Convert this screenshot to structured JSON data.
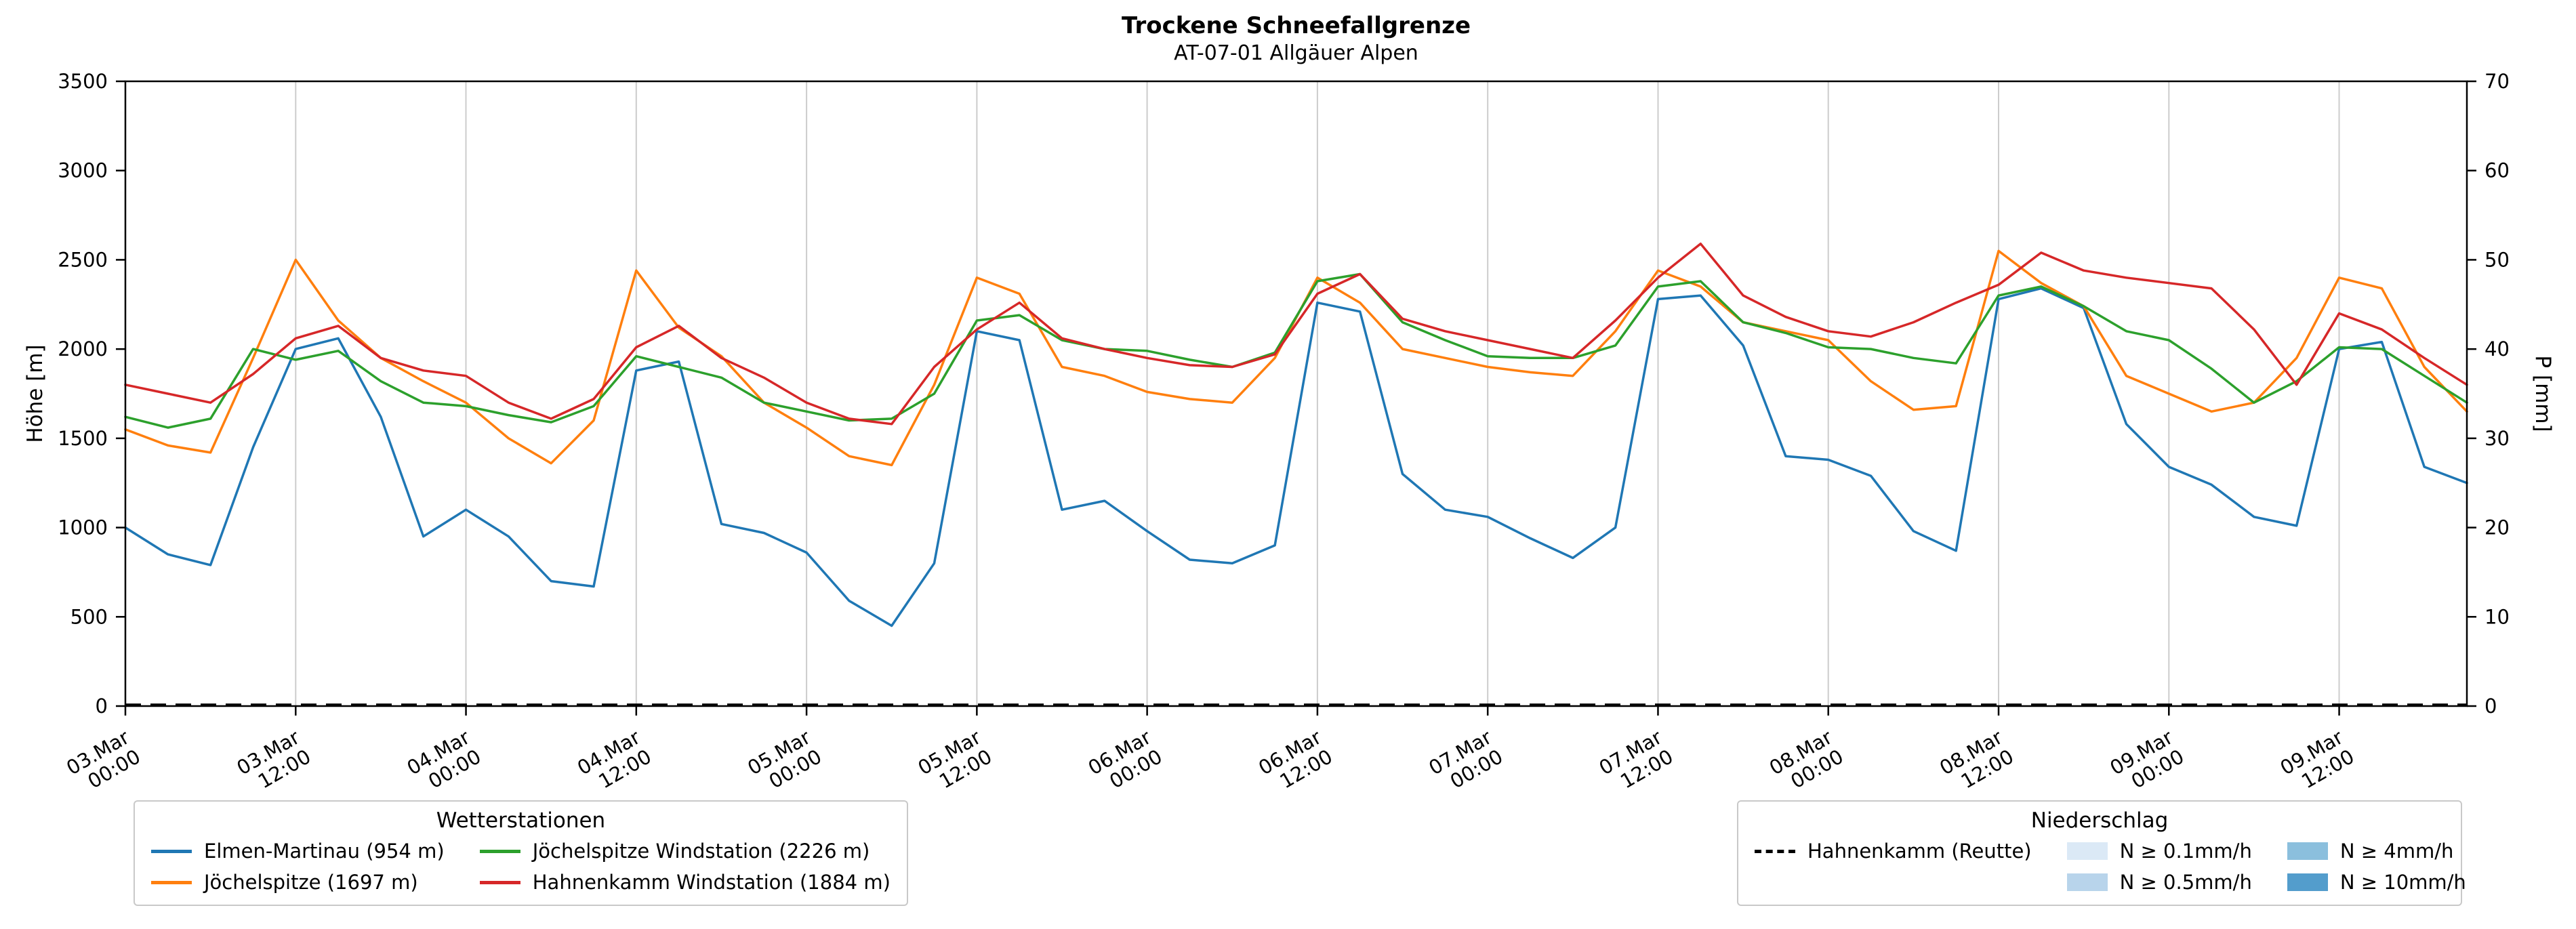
{
  "title": "Trockene Schneefallgrenze",
  "subtitle": "AT-07-01 Allgäuer Alpen",
  "chart_data": {
    "type": "line",
    "title": "Trockene Schneefallgrenze",
    "subtitle": "AT-07-01 Allgäuer Alpen",
    "ylabel_left": "Höhe [m]",
    "ylabel_right": "P [mm]",
    "ylim_left": [
      0,
      3500
    ],
    "yticks_left": [
      0,
      500,
      1000,
      1500,
      2000,
      2500,
      3000,
      3500
    ],
    "ylim_right": [
      0,
      70
    ],
    "yticks_right": [
      0,
      10,
      20,
      30,
      40,
      50,
      60,
      70
    ],
    "xlim_hours": [
      0,
      165
    ],
    "x_start": 0,
    "x_step_hours": 3,
    "grid": {
      "x": true,
      "y": false,
      "color": "#cccccc"
    },
    "x_ticks": [
      {
        "h": 0,
        "line1": "03.Mar",
        "line2": "00:00"
      },
      {
        "h": 12,
        "line1": "03.Mar",
        "line2": "12:00"
      },
      {
        "h": 24,
        "line1": "04.Mar",
        "line2": "00:00"
      },
      {
        "h": 36,
        "line1": "04.Mar",
        "line2": "12:00"
      },
      {
        "h": 48,
        "line1": "05.Mar",
        "line2": "00:00"
      },
      {
        "h": 60,
        "line1": "05.Mar",
        "line2": "12:00"
      },
      {
        "h": 72,
        "line1": "06.Mar",
        "line2": "00:00"
      },
      {
        "h": 84,
        "line1": "06.Mar",
        "line2": "12:00"
      },
      {
        "h": 96,
        "line1": "07.Mar",
        "line2": "00:00"
      },
      {
        "h": 108,
        "line1": "07.Mar",
        "line2": "12:00"
      },
      {
        "h": 120,
        "line1": "08.Mar",
        "line2": "00:00"
      },
      {
        "h": 132,
        "line1": "08.Mar",
        "line2": "12:00"
      },
      {
        "h": 144,
        "line1": "09.Mar",
        "line2": "00:00"
      },
      {
        "h": 156,
        "line1": "09.Mar",
        "line2": "12:00"
      }
    ],
    "series": [
      {
        "id": "elmen-martinau",
        "name": "Elmen-Martinau (954 m)",
        "color": "#1f77b4",
        "values": [
          1000,
          850,
          790,
          1450,
          2000,
          2060,
          1620,
          950,
          1100,
          950,
          700,
          670,
          1880,
          1930,
          1020,
          970,
          860,
          590,
          450,
          800,
          2100,
          2050,
          1100,
          1150,
          980,
          820,
          800,
          900,
          2260,
          2210,
          1300,
          1100,
          1060,
          940,
          830,
          1000,
          2280,
          2300,
          2020,
          1400,
          1380,
          1290,
          980,
          870,
          2280,
          2340,
          2230,
          1580,
          1340,
          1240,
          1060,
          1010,
          2000,
          2040,
          1340,
          1250
        ]
      },
      {
        "id": "joechelspitze",
        "name": "Jöchelspitze (1697 m)",
        "color": "#ff7f0e",
        "values": [
          1550,
          1460,
          1420,
          1950,
          2500,
          2160,
          1950,
          1820,
          1700,
          1500,
          1360,
          1600,
          2440,
          2120,
          1960,
          1700,
          1560,
          1400,
          1350,
          1800,
          2400,
          2310,
          1900,
          1850,
          1760,
          1720,
          1700,
          1950,
          2400,
          2260,
          2000,
          1950,
          1900,
          1870,
          1850,
          2100,
          2440,
          2350,
          2150,
          2100,
          2050,
          1820,
          1660,
          1680,
          2550,
          2370,
          2240,
          1850,
          1750,
          1650,
          1700,
          1950,
          2400,
          2340,
          1900,
          1650
        ]
      },
      {
        "id": "joechelspitze-windstation",
        "name": "Jöchelspitze Windstation (2226 m)",
        "color": "#2ca02c",
        "values": [
          1620,
          1560,
          1610,
          2000,
          1940,
          1990,
          1820,
          1700,
          1680,
          1630,
          1590,
          1680,
          1960,
          1900,
          1840,
          1700,
          1650,
          1600,
          1610,
          1750,
          2160,
          2190,
          2050,
          2000,
          1990,
          1940,
          1900,
          1980,
          2380,
          2420,
          2150,
          2050,
          1960,
          1950,
          1950,
          2020,
          2350,
          2380,
          2150,
          2090,
          2010,
          2000,
          1950,
          1920,
          2300,
          2350,
          2240,
          2100,
          2050,
          1890,
          1700,
          1820,
          2010,
          2000,
          1850,
          1700
        ]
      },
      {
        "id": "hahnenkamm-windstation",
        "name": "Hahnenkamm Windstation (1884 m)",
        "color": "#d62728",
        "values": [
          1800,
          1750,
          1700,
          1860,
          2060,
          2130,
          1950,
          1880,
          1850,
          1700,
          1610,
          1720,
          2010,
          2130,
          1950,
          1840,
          1700,
          1610,
          1580,
          1900,
          2110,
          2260,
          2060,
          2000,
          1950,
          1910,
          1900,
          1970,
          2310,
          2420,
          2170,
          2100,
          2050,
          2000,
          1950,
          2160,
          2400,
          2590,
          2300,
          2180,
          2100,
          2070,
          2150,
          2260,
          2360,
          2540,
          2440,
          2400,
          2370,
          2340,
          2110,
          1800,
          2200,
          2110,
          1950,
          1800
        ]
      }
    ],
    "precip_line": {
      "id": "hahnenkamm-reutte",
      "name": "Hahnenkamm (Reutte)",
      "color": "#000000",
      "style": "dashed",
      "axis": "right",
      "x": [
        0,
        165
      ],
      "values": [
        0,
        0
      ]
    }
  },
  "legend_stations": {
    "title": "Wetterstationen"
  },
  "legend_precip": {
    "title": "Niederschlag",
    "patches": [
      {
        "label": "N ≥ 0.1mm/h",
        "color": "#dbe9f6"
      },
      {
        "label": "N ≥ 0.5mm/h",
        "color": "#b8d4eb"
      },
      {
        "label": "N ≥ 4mm/h",
        "color": "#8bbfdd"
      },
      {
        "label": "N ≥ 10mm/h",
        "color": "#539dcc"
      }
    ]
  }
}
